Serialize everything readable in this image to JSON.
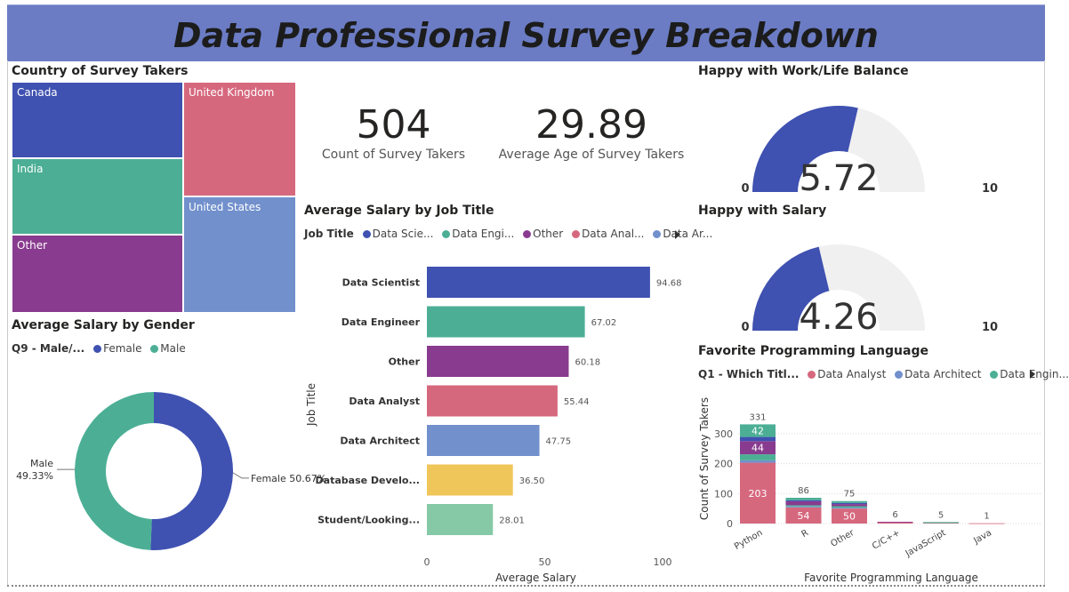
{
  "header": {
    "title": "Data Professional Survey Breakdown"
  },
  "treemap": {
    "title": "Country of Survey Takers",
    "tiles": [
      {
        "label": "Canada",
        "color": "#3f51b1"
      },
      {
        "label": "India",
        "color": "#4caf95"
      },
      {
        "label": "Other",
        "color": "#893b8f"
      },
      {
        "label": "United Kingdom",
        "color": "#d6687e"
      },
      {
        "label": "United States",
        "color": "#7190cc"
      }
    ]
  },
  "kpis": [
    {
      "value": "504",
      "label": "Count of Survey Takers"
    },
    {
      "value": "29.89",
      "label": "Average Age of Survey Takers"
    }
  ],
  "gauges": [
    {
      "title": "Happy with Work/Life Balance",
      "value": 5.72,
      "display": "5.72",
      "min_label": "0",
      "max_label": "10",
      "max": 10
    },
    {
      "title": "Happy with Salary",
      "value": 4.26,
      "display": "4.26",
      "min_label": "0",
      "max_label": "10",
      "max": 10
    }
  ],
  "job_legend": {
    "field": "Job Title",
    "items": [
      {
        "label": "Data Scie...",
        "color": "#3f51b1"
      },
      {
        "label": "Data Engi...",
        "color": "#4caf95"
      },
      {
        "label": "Other",
        "color": "#893b8f"
      },
      {
        "label": "Data Anal...",
        "color": "#d6687e"
      },
      {
        "label": "Data Ar...",
        "color": "#7190cc"
      }
    ]
  },
  "gender_legend": {
    "field": "Q9 - Male/...",
    "items": [
      {
        "label": "Female",
        "color": "#3f51b1"
      },
      {
        "label": "Male",
        "color": "#4caf95"
      }
    ]
  },
  "lang_legend": {
    "field": "Q1 - Which Titl...",
    "items": [
      {
        "label": "Data Analyst",
        "color": "#d6687e"
      },
      {
        "label": "Data Architect",
        "color": "#7190cc"
      },
      {
        "label": "Data Engin...",
        "color": "#4caf95"
      }
    ]
  },
  "chart_data": [
    {
      "type": "bar",
      "orientation": "horizontal",
      "title": "Average Salary by Job Title",
      "categories": [
        "Data Scientist",
        "Data Engineer",
        "Other",
        "Data Analyst",
        "Data Architect",
        "Database Develo...",
        "Student/Looking..."
      ],
      "values": [
        94.68,
        67.02,
        60.18,
        55.44,
        47.75,
        36.5,
        28.01
      ],
      "value_labels": [
        "94.68",
        "67.02",
        "60.18",
        "55.44",
        "47.75",
        "36.50",
        "28.01"
      ],
      "colors": [
        "#3f51b1",
        "#4caf95",
        "#893b8f",
        "#d6687e",
        "#7190cc",
        "#efc65a",
        "#86c9a6"
      ],
      "xlabel": "Average Salary",
      "ylabel": "Job Title",
      "xlim": [
        0,
        100
      ],
      "xticks": [
        "0",
        "50",
        "100"
      ],
      "grid": false
    },
    {
      "type": "pie",
      "style": "donut",
      "title": "Average Salary by Gender",
      "slices": [
        {
          "label": "Female",
          "value": 50.67,
          "text": "Female 50.67%",
          "color": "#3f51b1"
        },
        {
          "label": "Male",
          "value": 49.33,
          "text": "49.33%",
          "color": "#4caf95"
        }
      ]
    },
    {
      "type": "bar",
      "stacked": true,
      "title": "Favorite Programming Language",
      "categories": [
        "Python",
        "R",
        "Other",
        "C/C++",
        "JavaScript",
        "Java"
      ],
      "totals": [
        331,
        86,
        75,
        6,
        5,
        1
      ],
      "total_labels": [
        "331",
        "86",
        "75",
        "6",
        "5",
        "1"
      ],
      "series": [
        {
          "name": "Data Analyst",
          "color": "#d6687e",
          "values": [
            203,
            54,
            50,
            5,
            3,
            1
          ],
          "labels": [
            "203",
            "54",
            "50",
            "",
            "",
            ""
          ]
        },
        {
          "name": "Data Architect",
          "color": "#7190cc",
          "values": [
            8,
            3,
            3,
            0,
            0,
            0
          ],
          "labels": [
            "",
            "",
            "",
            "",
            "",
            ""
          ]
        },
        {
          "name": "Data Engineer",
          "color": "#4caf95",
          "values": [
            20,
            4,
            5,
            0,
            1,
            0
          ],
          "labels": [
            "",
            "",
            "",
            "",
            "",
            ""
          ]
        },
        {
          "name": "Other",
          "color": "#893b8f",
          "values": [
            44,
            13,
            7,
            1,
            0,
            0
          ],
          "labels": [
            "44",
            "",
            "",
            "",
            "",
            ""
          ]
        },
        {
          "name": "Data Scientist",
          "color": "#3f51b1",
          "values": [
            14,
            4,
            4,
            0,
            0,
            0
          ],
          "labels": [
            "",
            "",
            "",
            "",
            "",
            ""
          ]
        },
        {
          "name": "Data Engineer",
          "color": "#4caf95",
          "values": [
            42,
            8,
            6,
            0,
            1,
            0
          ],
          "labels": [
            "42",
            "",
            "",
            "",
            "",
            ""
          ]
        }
      ],
      "xlabel": "Favorite Programming Language",
      "ylabel": "Count of Survey Takers",
      "ylim": [
        0,
        350
      ],
      "yticks": [
        "0",
        "100",
        "200",
        "300"
      ],
      "grid": true
    }
  ]
}
